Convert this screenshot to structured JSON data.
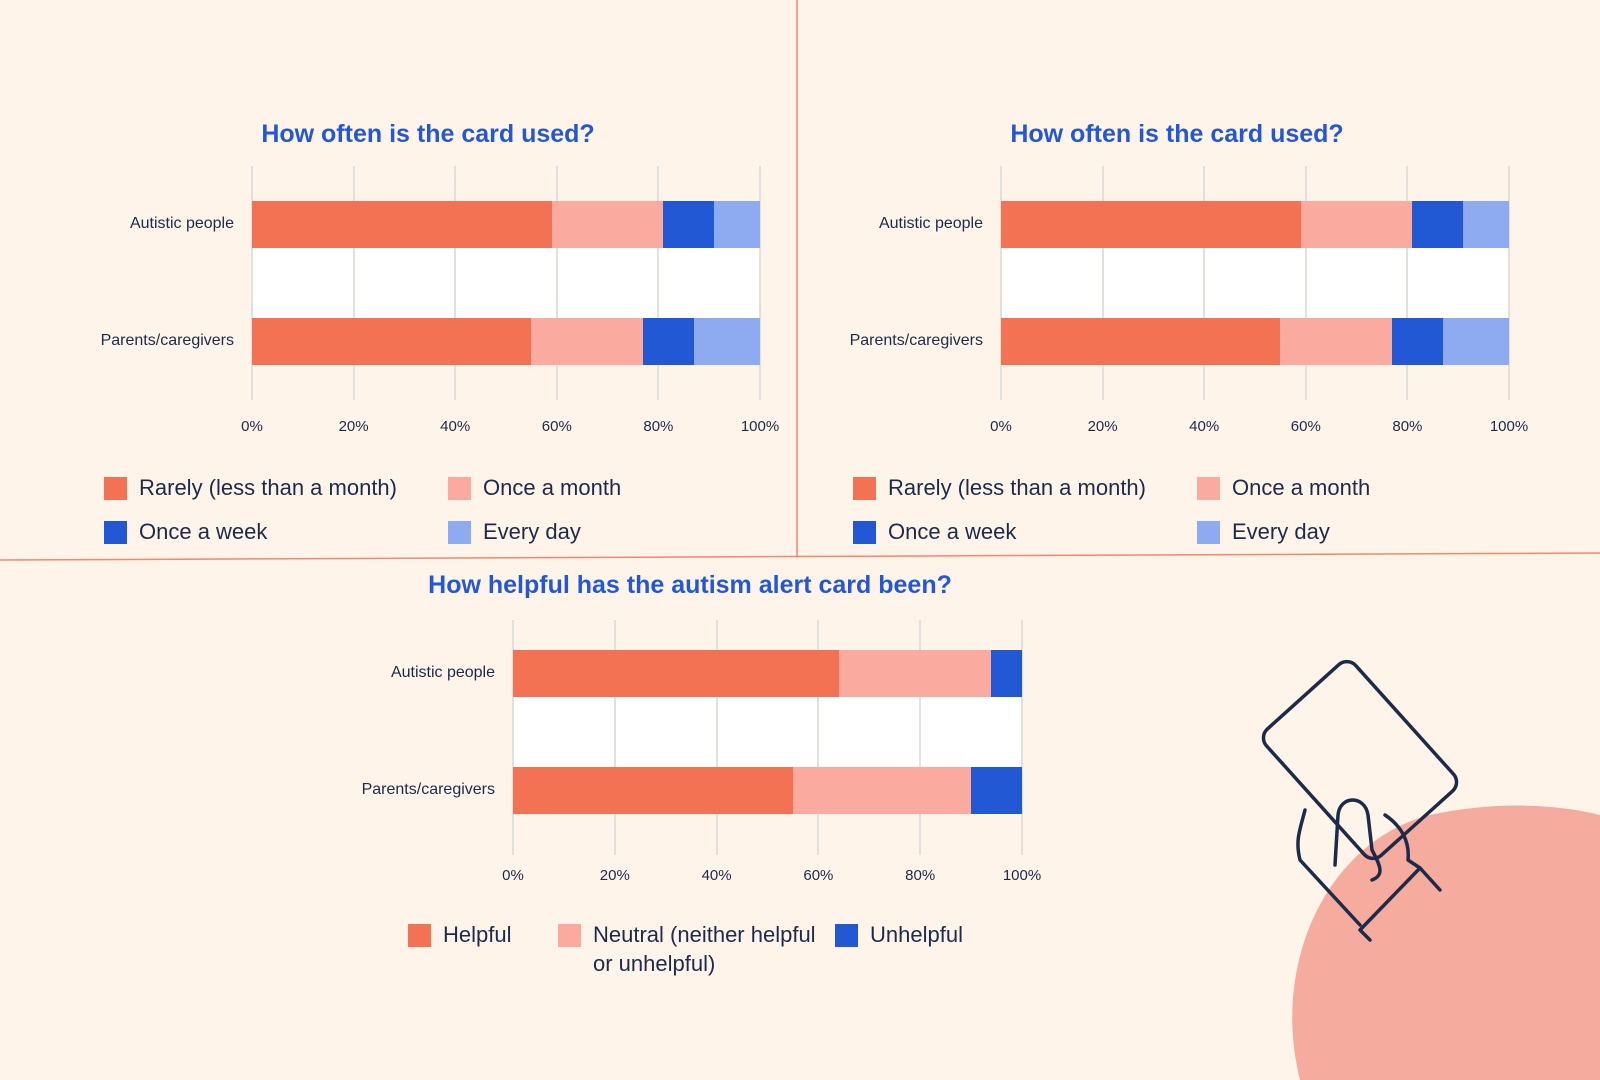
{
  "chart_data": [
    {
      "type": "bar",
      "orientation": "horizontal",
      "stacked": true,
      "title": "How often is the card used?",
      "categories": [
        "Autistic people",
        "Parents/caregivers"
      ],
      "xlim": [
        0,
        100
      ],
      "x_ticks": [
        "0%",
        "20%",
        "40%",
        "60%",
        "80%",
        "100%"
      ],
      "grid": true,
      "legend_position": "bottom",
      "series": [
        {
          "name": "Rarely (less than a month)",
          "color": "#f37253",
          "values": [
            59,
            55
          ]
        },
        {
          "name": "Once a month",
          "color": "#faaa9f",
          "values": [
            22,
            22
          ]
        },
        {
          "name": "Once a week",
          "color": "#2358d4",
          "values": [
            10,
            10
          ]
        },
        {
          "name": "Every day",
          "color": "#8eabf2",
          "values": [
            9,
            13
          ]
        }
      ]
    },
    {
      "type": "bar",
      "orientation": "horizontal",
      "stacked": true,
      "title": "How often is the card used?",
      "categories": [
        "Autistic people",
        "Parents/caregivers"
      ],
      "xlim": [
        0,
        100
      ],
      "x_ticks": [
        "0%",
        "20%",
        "40%",
        "60%",
        "80%",
        "100%"
      ],
      "grid": true,
      "legend_position": "bottom",
      "series": [
        {
          "name": "Rarely (less than a month)",
          "color": "#f37253",
          "values": [
            59,
            55
          ]
        },
        {
          "name": "Once a month",
          "color": "#faaa9f",
          "values": [
            22,
            22
          ]
        },
        {
          "name": "Once a week",
          "color": "#2358d4",
          "values": [
            10,
            10
          ]
        },
        {
          "name": "Every day",
          "color": "#8eabf2",
          "values": [
            9,
            13
          ]
        }
      ]
    },
    {
      "type": "bar",
      "orientation": "horizontal",
      "stacked": true,
      "title": "How helpful has the autism alert card been?",
      "categories": [
        "Autistic people",
        "Parents/caregivers"
      ],
      "xlim": [
        0,
        100
      ],
      "x_ticks": [
        "0%",
        "20%",
        "40%",
        "60%",
        "80%",
        "100%"
      ],
      "grid": true,
      "legend_position": "bottom",
      "series": [
        {
          "name": "Helpful",
          "color": "#f37253",
          "values": [
            64,
            55
          ]
        },
        {
          "name": "Neutral (neither helpful or unhelpful)",
          "color": "#faaa9f",
          "values": [
            30,
            35
          ]
        },
        {
          "name": "Unhelpful",
          "color": "#2358d4",
          "values": [
            6,
            10
          ]
        }
      ]
    }
  ],
  "decoration": {
    "icon": "hand-holding-card-icon",
    "blob_color": "#f6ab9f",
    "divider_color": "#f08a6c"
  }
}
